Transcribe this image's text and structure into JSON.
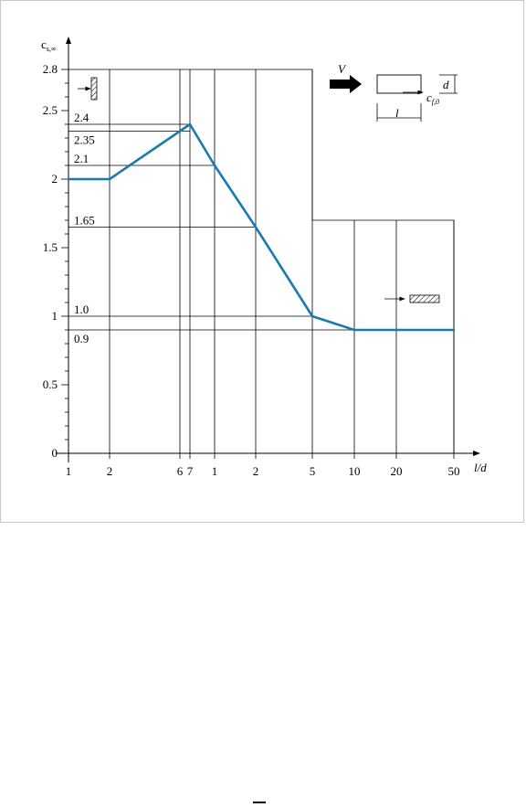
{
  "chart_data": {
    "type": "line",
    "ylabel": "cs,∞",
    "xlabel": "l/d",
    "ylim": [
      0,
      2.8
    ],
    "y_major_ticks": [
      0,
      0.5,
      1,
      1.5,
      2,
      2.5,
      2.8
    ],
    "y_tick_labels": [
      "0",
      "0.5",
      "1",
      "1.5",
      "2",
      "2.5",
      "2.8"
    ],
    "x_tick_labels": [
      "1",
      "2",
      "6",
      "7",
      "1",
      "2",
      "5",
      "10",
      "20",
      "50"
    ],
    "x_label_value": "l/d",
    "series": [
      {
        "values_by_tick": [
          {
            "x": "1",
            "y": 2.0
          },
          {
            "x": "2",
            "y": 2.0
          },
          {
            "x": "7",
            "y": 2.4
          },
          {
            "x": "1",
            "y": 2.1
          },
          {
            "x": "2",
            "y": 1.65
          },
          {
            "x": "5",
            "y": 1.0
          },
          {
            "x": "10",
            "y": 0.9
          },
          {
            "x": "20",
            "y": 0.9
          },
          {
            "x": "50",
            "y": 0.9
          }
        ],
        "color": "#1a7ab0"
      }
    ],
    "annotations": [
      "2.4",
      "2.35",
      "2.1",
      "1.65",
      "1.0",
      "0.9"
    ],
    "inset": {
      "wind_label": "V",
      "depth_label": "d",
      "length_label": "l",
      "coef_label": "cf,0"
    },
    "grid": true
  }
}
